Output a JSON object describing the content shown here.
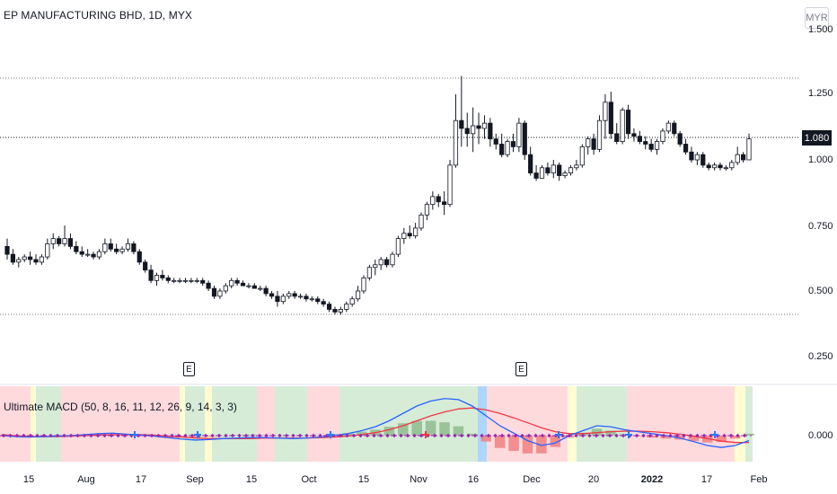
{
  "chart": {
    "title": "EP MANUFACTURING BHD, 1D, MYX",
    "currency": "MYR",
    "last_price": "1.080",
    "price_axis_labels": [
      "1.500",
      "1.250",
      "1.000",
      "0.750",
      "0.500",
      "0.250"
    ],
    "earnings_marker": "E",
    "macd_title": "Ultimate MACD (50, 8, 16, 11, 12, 26, 9, 14, 3, 3)",
    "macd_axis_label": "0.000",
    "time_axis_labels": [
      "15",
      "Aug",
      "17",
      "Sep",
      "15",
      "Oct",
      "15",
      "Nov",
      "16",
      "Dec",
      "20",
      "2022",
      "17",
      "Feb"
    ]
  },
  "chart_data": {
    "type": "candlestick",
    "symbol": "EP MANUFACTURING BHD",
    "interval": "1D",
    "exchange": "MYX",
    "ylim": [
      0.25,
      1.5
    ],
    "last": 1.08,
    "ohlc": [
      [
        0.67,
        0.7,
        0.62,
        0.64
      ],
      [
        0.64,
        0.66,
        0.6,
        0.61
      ],
      [
        0.61,
        0.63,
        0.59,
        0.62
      ],
      [
        0.62,
        0.64,
        0.61,
        0.63
      ],
      [
        0.63,
        0.65,
        0.6,
        0.62
      ],
      [
        0.62,
        0.64,
        0.6,
        0.61
      ],
      [
        0.61,
        0.64,
        0.6,
        0.63
      ],
      [
        0.63,
        0.7,
        0.62,
        0.68
      ],
      [
        0.68,
        0.72,
        0.66,
        0.7
      ],
      [
        0.7,
        0.71,
        0.67,
        0.68
      ],
      [
        0.68,
        0.75,
        0.67,
        0.7
      ],
      [
        0.7,
        0.72,
        0.66,
        0.67
      ],
      [
        0.67,
        0.69,
        0.64,
        0.65
      ],
      [
        0.65,
        0.67,
        0.63,
        0.64
      ],
      [
        0.64,
        0.66,
        0.63,
        0.64
      ],
      [
        0.64,
        0.65,
        0.62,
        0.63
      ],
      [
        0.63,
        0.66,
        0.62,
        0.65
      ],
      [
        0.65,
        0.7,
        0.64,
        0.68
      ],
      [
        0.68,
        0.7,
        0.65,
        0.66
      ],
      [
        0.66,
        0.68,
        0.64,
        0.65
      ],
      [
        0.65,
        0.67,
        0.64,
        0.66
      ],
      [
        0.66,
        0.7,
        0.65,
        0.68
      ],
      [
        0.68,
        0.69,
        0.64,
        0.65
      ],
      [
        0.65,
        0.66,
        0.6,
        0.61
      ],
      [
        0.61,
        0.62,
        0.57,
        0.58
      ],
      [
        0.58,
        0.6,
        0.53,
        0.54
      ],
      [
        0.54,
        0.57,
        0.52,
        0.56
      ],
      [
        0.56,
        0.58,
        0.54,
        0.55
      ],
      [
        0.55,
        0.56,
        0.53,
        0.54
      ],
      [
        0.54,
        0.55,
        0.53,
        0.54
      ],
      [
        0.54,
        0.55,
        0.53,
        0.54
      ],
      [
        0.54,
        0.55,
        0.53,
        0.54
      ],
      [
        0.54,
        0.55,
        0.53,
        0.54
      ],
      [
        0.54,
        0.55,
        0.53,
        0.54
      ],
      [
        0.54,
        0.55,
        0.52,
        0.53
      ],
      [
        0.53,
        0.54,
        0.5,
        0.51
      ],
      [
        0.51,
        0.52,
        0.47,
        0.48
      ],
      [
        0.48,
        0.51,
        0.47,
        0.5
      ],
      [
        0.5,
        0.53,
        0.49,
        0.52
      ],
      [
        0.52,
        0.55,
        0.51,
        0.54
      ],
      [
        0.54,
        0.55,
        0.52,
        0.53
      ],
      [
        0.53,
        0.54,
        0.52,
        0.52
      ],
      [
        0.52,
        0.53,
        0.51,
        0.52
      ],
      [
        0.52,
        0.53,
        0.51,
        0.51
      ],
      [
        0.51,
        0.52,
        0.5,
        0.51
      ],
      [
        0.51,
        0.52,
        0.48,
        0.49
      ],
      [
        0.49,
        0.5,
        0.47,
        0.48
      ],
      [
        0.48,
        0.5,
        0.44,
        0.46
      ],
      [
        0.46,
        0.49,
        0.45,
        0.48
      ],
      [
        0.48,
        0.5,
        0.47,
        0.49
      ],
      [
        0.49,
        0.5,
        0.47,
        0.48
      ],
      [
        0.48,
        0.49,
        0.47,
        0.48
      ],
      [
        0.48,
        0.49,
        0.46,
        0.47
      ],
      [
        0.47,
        0.48,
        0.46,
        0.47
      ],
      [
        0.47,
        0.48,
        0.45,
        0.46
      ],
      [
        0.46,
        0.47,
        0.44,
        0.45
      ],
      [
        0.45,
        0.46,
        0.42,
        0.43
      ],
      [
        0.43,
        0.44,
        0.41,
        0.42
      ],
      [
        0.42,
        0.44,
        0.41,
        0.43
      ],
      [
        0.43,
        0.46,
        0.42,
        0.45
      ],
      [
        0.45,
        0.48,
        0.44,
        0.47
      ],
      [
        0.47,
        0.52,
        0.46,
        0.5
      ],
      [
        0.5,
        0.56,
        0.49,
        0.55
      ],
      [
        0.55,
        0.6,
        0.54,
        0.59
      ],
      [
        0.59,
        0.62,
        0.56,
        0.6
      ],
      [
        0.6,
        0.63,
        0.58,
        0.62
      ],
      [
        0.62,
        0.63,
        0.59,
        0.6
      ],
      [
        0.6,
        0.65,
        0.59,
        0.64
      ],
      [
        0.64,
        0.71,
        0.63,
        0.7
      ],
      [
        0.7,
        0.74,
        0.68,
        0.72
      ],
      [
        0.72,
        0.75,
        0.7,
        0.71
      ],
      [
        0.71,
        0.76,
        0.7,
        0.74
      ],
      [
        0.74,
        0.8,
        0.73,
        0.79
      ],
      [
        0.79,
        0.84,
        0.77,
        0.83
      ],
      [
        0.83,
        0.88,
        0.81,
        0.86
      ],
      [
        0.86,
        0.87,
        0.82,
        0.84
      ],
      [
        0.84,
        0.88,
        0.79,
        0.83
      ],
      [
        0.83,
        1.0,
        0.82,
        0.98
      ],
      [
        0.98,
        1.25,
        0.97,
        1.15
      ],
      [
        1.15,
        1.32,
        1.05,
        1.12
      ],
      [
        1.12,
        1.18,
        1.05,
        1.1
      ],
      [
        1.1,
        1.2,
        1.03,
        1.13
      ],
      [
        1.13,
        1.18,
        1.06,
        1.12
      ],
      [
        1.12,
        1.17,
        1.08,
        1.14
      ],
      [
        1.14,
        1.16,
        1.05,
        1.08
      ],
      [
        1.08,
        1.1,
        1.04,
        1.06
      ],
      [
        1.06,
        1.1,
        1.01,
        1.02
      ],
      [
        1.02,
        1.08,
        1.01,
        1.07
      ],
      [
        1.07,
        1.1,
        1.03,
        1.05
      ],
      [
        1.05,
        1.16,
        1.03,
        1.14
      ],
      [
        1.14,
        1.15,
        1.0,
        1.02
      ],
      [
        1.02,
        1.05,
        0.94,
        0.95
      ],
      [
        0.95,
        0.98,
        0.92,
        0.93
      ],
      [
        0.93,
        0.98,
        0.93,
        0.97
      ],
      [
        0.97,
        0.99,
        0.94,
        0.95
      ],
      [
        0.95,
        1.0,
        0.93,
        0.98
      ],
      [
        0.98,
        0.99,
        0.92,
        0.94
      ],
      [
        0.94,
        0.96,
        0.93,
        0.95
      ],
      [
        0.95,
        0.98,
        0.94,
        0.97
      ],
      [
        0.97,
        1.0,
        0.96,
        0.98
      ],
      [
        0.98,
        1.06,
        0.97,
        1.05
      ],
      [
        1.05,
        1.09,
        1.02,
        1.08
      ],
      [
        1.08,
        1.1,
        1.02,
        1.04
      ],
      [
        1.04,
        1.17,
        1.03,
        1.15
      ],
      [
        1.15,
        1.25,
        1.08,
        1.22
      ],
      [
        1.22,
        1.26,
        1.08,
        1.1
      ],
      [
        1.1,
        1.14,
        1.06,
        1.07
      ],
      [
        1.07,
        1.2,
        1.06,
        1.19
      ],
      [
        1.19,
        1.21,
        1.08,
        1.1
      ],
      [
        1.1,
        1.12,
        1.07,
        1.09
      ],
      [
        1.09,
        1.11,
        1.06,
        1.07
      ],
      [
        1.07,
        1.09,
        1.04,
        1.06
      ],
      [
        1.06,
        1.08,
        1.03,
        1.04
      ],
      [
        1.04,
        1.08,
        1.02,
        1.07
      ],
      [
        1.07,
        1.12,
        1.06,
        1.11
      ],
      [
        1.11,
        1.15,
        1.1,
        1.14
      ],
      [
        1.14,
        1.15,
        1.09,
        1.1
      ],
      [
        1.1,
        1.11,
        1.05,
        1.06
      ],
      [
        1.06,
        1.08,
        1.02,
        1.03
      ],
      [
        1.03,
        1.05,
        0.99,
        1.0
      ],
      [
        1.0,
        1.03,
        0.98,
        1.02
      ],
      [
        1.02,
        1.03,
        0.97,
        0.98
      ],
      [
        0.98,
        0.99,
        0.96,
        0.97
      ],
      [
        0.97,
        0.99,
        0.96,
        0.98
      ],
      [
        0.98,
        0.99,
        0.96,
        0.97
      ],
      [
        0.97,
        0.98,
        0.96,
        0.97
      ],
      [
        0.97,
        1.0,
        0.96,
        0.99
      ],
      [
        0.99,
        1.05,
        0.98,
        1.02
      ],
      [
        1.02,
        1.03,
        0.99,
        1.0
      ],
      [
        1.0,
        1.1,
        1.0,
        1.08
      ]
    ],
    "macd": {
      "zero_line": 0.0,
      "macd_line": [
        0.0,
        -0.002,
        -0.003,
        -0.002,
        -0.001,
        0.0,
        0.002,
        0.004,
        0.005,
        0.003,
        0.001,
        -0.001,
        -0.004,
        -0.007,
        -0.009,
        -0.008,
        -0.006,
        -0.005,
        -0.004,
        -0.004,
        -0.005,
        -0.006,
        -0.005,
        -0.003,
        0.0,
        0.004,
        0.01,
        0.018,
        0.03,
        0.045,
        0.06,
        0.07,
        0.075,
        0.073,
        0.06,
        0.04,
        0.02,
        0.005,
        -0.01,
        -0.02,
        -0.015,
        0.0,
        0.01,
        0.02,
        0.018,
        0.012,
        0.008,
        0.004,
        0.0,
        -0.005,
        -0.012,
        -0.02,
        -0.024,
        -0.02,
        -0.01
      ],
      "signal_line": [
        0.002,
        0.0,
        -0.002,
        -0.002,
        -0.002,
        -0.001,
        0.0,
        0.001,
        0.002,
        0.002,
        0.002,
        0.001,
        -0.001,
        -0.003,
        -0.005,
        -0.006,
        -0.006,
        -0.006,
        -0.006,
        -0.005,
        -0.005,
        -0.005,
        -0.005,
        -0.004,
        -0.003,
        -0.001,
        0.002,
        0.006,
        0.012,
        0.02,
        0.03,
        0.04,
        0.048,
        0.054,
        0.056,
        0.052,
        0.045,
        0.036,
        0.026,
        0.016,
        0.008,
        0.004,
        0.004,
        0.006,
        0.008,
        0.009,
        0.009,
        0.008,
        0.006,
        0.003,
        -0.001,
        -0.006,
        -0.011,
        -0.014,
        -0.014
      ],
      "histogram": [
        -0.002,
        -0.002,
        -0.001,
        0.0,
        0.001,
        0.001,
        0.002,
        0.003,
        0.003,
        0.001,
        -0.001,
        -0.002,
        -0.003,
        -0.004,
        -0.004,
        -0.002,
        0.0,
        0.001,
        0.002,
        0.001,
        0.0,
        -0.001,
        0.0,
        0.001,
        0.003,
        0.005,
        0.008,
        0.012,
        0.018,
        0.025,
        0.03,
        0.03,
        0.027,
        0.019,
        0.004,
        -0.012,
        -0.025,
        -0.031,
        -0.036,
        -0.036,
        -0.023,
        -0.004,
        0.006,
        0.014,
        0.01,
        0.003,
        -0.001,
        -0.004,
        -0.006,
        -0.008,
        -0.011,
        -0.014,
        -0.013,
        -0.006,
        0.004
      ]
    }
  }
}
